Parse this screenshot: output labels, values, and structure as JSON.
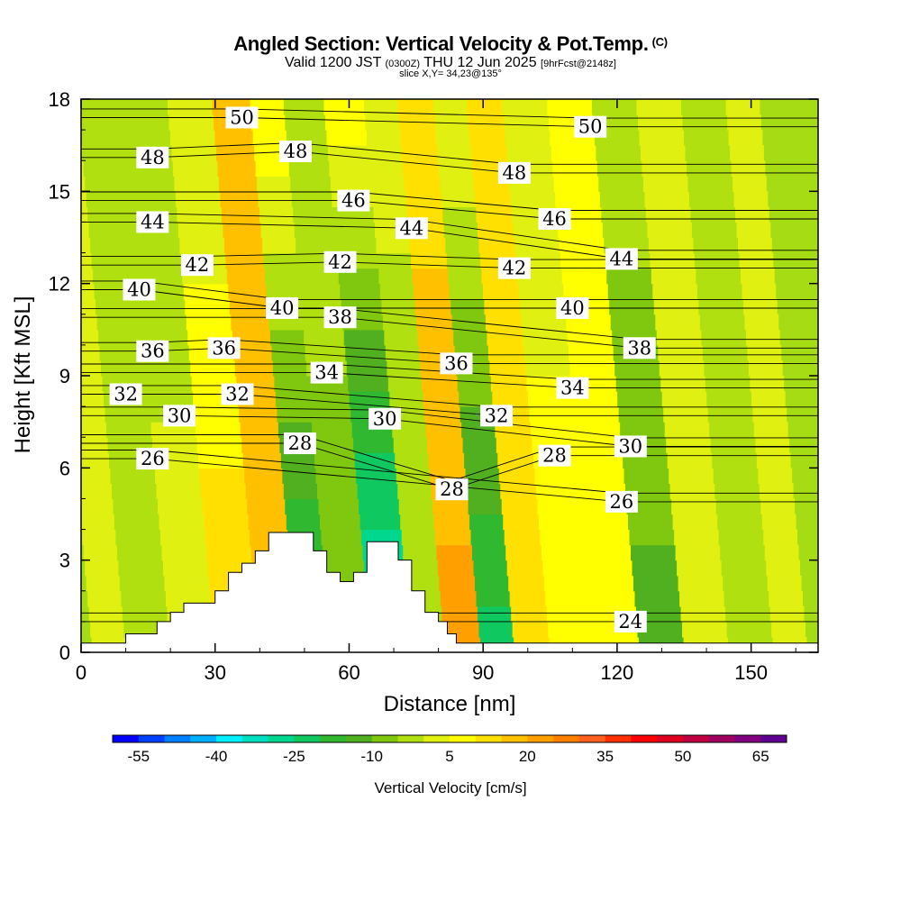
{
  "chart_data": {
    "type": "heatmap",
    "title": "Angled Section: Vertical Velocity & Pot.Temp.",
    "title_suffix": "(C)",
    "subtitle_valid": "Valid 1200 JST",
    "subtitle_utc": "(0300Z)",
    "subtitle_date": "THU 12 Jun 2025",
    "subtitle_fcst": "[9hrFcst@2148z]",
    "slice_info": "slice X,Y= 34,23@135°",
    "xlabel": "Distance [nm]",
    "ylabel": "Height [Kft MSL]",
    "xlim": [
      0,
      165
    ],
    "ylim": [
      0,
      18
    ],
    "x_ticks": [
      0,
      30,
      60,
      90,
      120,
      150
    ],
    "y_ticks": [
      0,
      3,
      6,
      9,
      12,
      15,
      18
    ],
    "colorbar": {
      "title": "Vertical Velocity [cm/s]",
      "tick_labels": [
        "-55",
        "-40",
        "-25",
        "-10",
        "5",
        "20",
        "35",
        "50",
        "65"
      ],
      "colors": [
        "#0000ff",
        "#0040ff",
        "#0080ff",
        "#00b0ff",
        "#00f0ff",
        "#00e0c0",
        "#00d890",
        "#10c860",
        "#30b830",
        "#50b020",
        "#80c810",
        "#b0e010",
        "#e0f010",
        "#ffff00",
        "#ffe000",
        "#ffc000",
        "#ffa000",
        "#ff8000",
        "#ff6020",
        "#ff3000",
        "#ff0000",
        "#e00020",
        "#c00040",
        "#a00060",
        "#800080",
        "#600090"
      ]
    },
    "vertical_velocity_columns": [
      {
        "x": 5,
        "w_low": 0,
        "w_high": 2
      },
      {
        "x": 15,
        "w_low": 0,
        "w_high": -2
      },
      {
        "x": 25,
        "w_low": 3,
        "w_high": -4
      },
      {
        "x": 35,
        "w_low": 15,
        "w_high": 0
      },
      {
        "x": 45,
        "w_low": 18,
        "w_high": 20
      },
      {
        "x": 52,
        "w_low": -25,
        "w_high": 10
      },
      {
        "x": 60,
        "w_low": -10,
        "w_high": 0
      },
      {
        "x": 70,
        "w_low": -35,
        "w_high": 8
      },
      {
        "x": 78,
        "w_low": -5,
        "w_high": 2
      },
      {
        "x": 85,
        "w_low": 22,
        "w_high": 12
      },
      {
        "x": 94,
        "w_low": -22,
        "w_high": 5
      },
      {
        "x": 100,
        "w_low": 15,
        "w_high": 10
      },
      {
        "x": 110,
        "w_low": 10,
        "w_high": 0
      },
      {
        "x": 120,
        "w_low": 5,
        "w_high": 8
      },
      {
        "x": 130,
        "w_low": -12,
        "w_high": -2
      },
      {
        "x": 140,
        "w_low": 0,
        "w_high": 3
      },
      {
        "x": 150,
        "w_low": -3,
        "w_high": 0
      },
      {
        "x": 160,
        "w_low": 3,
        "w_high": 2
      }
    ],
    "terrain_nm_kft": [
      [
        0,
        0.3
      ],
      [
        10,
        0.3
      ],
      [
        10,
        0.6
      ],
      [
        17,
        0.6
      ],
      [
        17,
        1.0
      ],
      [
        20,
        1.0
      ],
      [
        20,
        1.3
      ],
      [
        23,
        1.3
      ],
      [
        23,
        1.6
      ],
      [
        30,
        1.6
      ],
      [
        30,
        2.0
      ],
      [
        33,
        2.0
      ],
      [
        33,
        2.6
      ],
      [
        36,
        2.6
      ],
      [
        36,
        2.9
      ],
      [
        39,
        2.9
      ],
      [
        39,
        3.3
      ],
      [
        42,
        3.3
      ],
      [
        42,
        3.9
      ],
      [
        52,
        3.9
      ],
      [
        52,
        3.3
      ],
      [
        55,
        3.3
      ],
      [
        55,
        2.6
      ],
      [
        58,
        2.6
      ],
      [
        58,
        2.3
      ],
      [
        61,
        2.3
      ],
      [
        61,
        2.6
      ],
      [
        64,
        2.6
      ],
      [
        64,
        3.6
      ],
      [
        71,
        3.6
      ],
      [
        71,
        3.0
      ],
      [
        74,
        3.0
      ],
      [
        74,
        2.0
      ],
      [
        77,
        2.0
      ],
      [
        77,
        1.3
      ],
      [
        80,
        1.3
      ],
      [
        80,
        1.0
      ],
      [
        82,
        1.0
      ],
      [
        82,
        0.6
      ],
      [
        84,
        0.6
      ],
      [
        84,
        0.3
      ],
      [
        165,
        0.3
      ]
    ],
    "potential_temperature_labels": [
      {
        "text": "50",
        "x": 36,
        "y": 17.4
      },
      {
        "text": "48",
        "x": 16,
        "y": 16.1
      },
      {
        "text": "48",
        "x": 48,
        "y": 16.3
      },
      {
        "text": "46",
        "x": 61,
        "y": 14.7
      },
      {
        "text": "44",
        "x": 16,
        "y": 14.0
      },
      {
        "text": "42",
        "x": 26,
        "y": 12.6
      },
      {
        "text": "42",
        "x": 58,
        "y": 12.7
      },
      {
        "text": "44",
        "x": 74,
        "y": 13.8
      },
      {
        "text": "40",
        "x": 13,
        "y": 11.8
      },
      {
        "text": "40",
        "x": 45,
        "y": 11.2
      },
      {
        "text": "38",
        "x": 58,
        "y": 10.9
      },
      {
        "text": "36",
        "x": 16,
        "y": 9.8
      },
      {
        "text": "36",
        "x": 32,
        "y": 9.9
      },
      {
        "text": "34",
        "x": 55,
        "y": 9.1
      },
      {
        "text": "36",
        "x": 84,
        "y": 9.4
      },
      {
        "text": "32",
        "x": 10,
        "y": 8.4
      },
      {
        "text": "32",
        "x": 35,
        "y": 8.4
      },
      {
        "text": "30",
        "x": 22,
        "y": 7.7
      },
      {
        "text": "30",
        "x": 68,
        "y": 7.6
      },
      {
        "text": "28",
        "x": 49,
        "y": 6.8
      },
      {
        "text": "26",
        "x": 16,
        "y": 6.3
      },
      {
        "text": "28",
        "x": 83,
        "y": 5.3
      },
      {
        "text": "32",
        "x": 93,
        "y": 7.7
      },
      {
        "text": "28",
        "x": 106,
        "y": 6.4
      },
      {
        "text": "34",
        "x": 110,
        "y": 8.6
      },
      {
        "text": "30",
        "x": 123,
        "y": 6.7
      },
      {
        "text": "26",
        "x": 121,
        "y": 4.9
      },
      {
        "text": "24",
        "x": 123,
        "y": 1.0
      },
      {
        "text": "50",
        "x": 114,
        "y": 17.1
      },
      {
        "text": "48",
        "x": 97,
        "y": 15.6
      },
      {
        "text": "46",
        "x": 106,
        "y": 14.1
      },
      {
        "text": "42",
        "x": 97,
        "y": 12.5
      },
      {
        "text": "44",
        "x": 121,
        "y": 12.8
      },
      {
        "text": "40",
        "x": 110,
        "y": 11.2
      },
      {
        "text": "38",
        "x": 125,
        "y": 9.9
      }
    ]
  }
}
